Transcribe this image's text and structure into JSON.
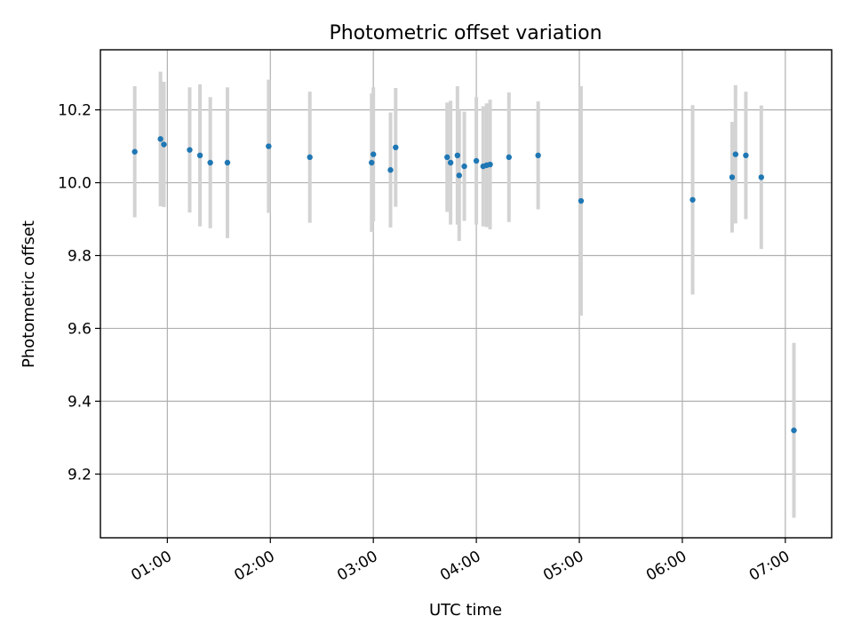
{
  "chart_data": {
    "type": "scatter",
    "title": "Photometric offset variation",
    "xlabel": "UTC time",
    "ylabel": "Photometric offset",
    "x_ticks": [
      {
        "time": "01:00",
        "label": "01:00"
      },
      {
        "time": "02:00",
        "label": "02:00"
      },
      {
        "time": "03:00",
        "label": "03:00"
      },
      {
        "time": "04:00",
        "label": "04:00"
      },
      {
        "time": "05:00",
        "label": "05:00"
      },
      {
        "time": "06:00",
        "label": "06:00"
      },
      {
        "time": "07:00",
        "label": "07:00"
      }
    ],
    "y_ticks": [
      {
        "value": 9.2,
        "label": "9.2"
      },
      {
        "value": 9.4,
        "label": "9.4"
      },
      {
        "value": 9.6,
        "label": "9.6"
      },
      {
        "value": 9.8,
        "label": "9.8"
      },
      {
        "value": 10.0,
        "label": "10.0"
      },
      {
        "value": 10.2,
        "label": "10.2"
      }
    ],
    "xlim": [
      "00:21",
      "07:27"
    ],
    "ylim": [
      9.025,
      10.365
    ],
    "grid": true,
    "point_color": "#1f77b4",
    "errorbar_color": "#d3d3d3",
    "points": [
      {
        "time": "00:41",
        "y": 10.085,
        "err": 0.18
      },
      {
        "time": "00:56",
        "y": 10.12,
        "err": 0.185
      },
      {
        "time": "00:58",
        "y": 10.105,
        "err": 0.172
      },
      {
        "time": "01:13",
        "y": 10.09,
        "err": 0.172
      },
      {
        "time": "01:19",
        "y": 10.075,
        "err": 0.195
      },
      {
        "time": "01:25",
        "y": 10.055,
        "err": 0.18
      },
      {
        "time": "01:35",
        "y": 10.055,
        "err": 0.207
      },
      {
        "time": "01:59",
        "y": 10.1,
        "err": 0.183
      },
      {
        "time": "02:23",
        "y": 10.07,
        "err": 0.18
      },
      {
        "time": "02:59",
        "y": 10.055,
        "err": 0.19
      },
      {
        "time": "03:00",
        "y": 10.078,
        "err": 0.184
      },
      {
        "time": "03:10",
        "y": 10.035,
        "err": 0.158
      },
      {
        "time": "03:13",
        "y": 10.097,
        "err": 0.163
      },
      {
        "time": "03:43",
        "y": 10.07,
        "err": 0.15
      },
      {
        "time": "03:45",
        "y": 10.055,
        "err": 0.17
      },
      {
        "time": "03:49",
        "y": 10.075,
        "err": 0.19
      },
      {
        "time": "03:50",
        "y": 10.02,
        "err": 0.18
      },
      {
        "time": "03:53",
        "y": 10.045,
        "err": 0.15
      },
      {
        "time": "04:00",
        "y": 10.06,
        "err": 0.175
      },
      {
        "time": "04:04",
        "y": 10.045,
        "err": 0.165
      },
      {
        "time": "04:06",
        "y": 10.048,
        "err": 0.17
      },
      {
        "time": "04:08",
        "y": 10.05,
        "err": 0.178
      },
      {
        "time": "04:19",
        "y": 10.07,
        "err": 0.178
      },
      {
        "time": "04:36",
        "y": 10.075,
        "err": 0.148
      },
      {
        "time": "05:01",
        "y": 9.95,
        "err": 0.315
      },
      {
        "time": "06:06",
        "y": 9.953,
        "err": 0.26
      },
      {
        "time": "06:29",
        "y": 10.015,
        "err": 0.152
      },
      {
        "time": "06:31",
        "y": 10.078,
        "err": 0.19
      },
      {
        "time": "06:37",
        "y": 10.075,
        "err": 0.175
      },
      {
        "time": "06:46",
        "y": 10.015,
        "err": 0.197
      },
      {
        "time": "07:05",
        "y": 9.32,
        "err": 0.24
      }
    ]
  }
}
